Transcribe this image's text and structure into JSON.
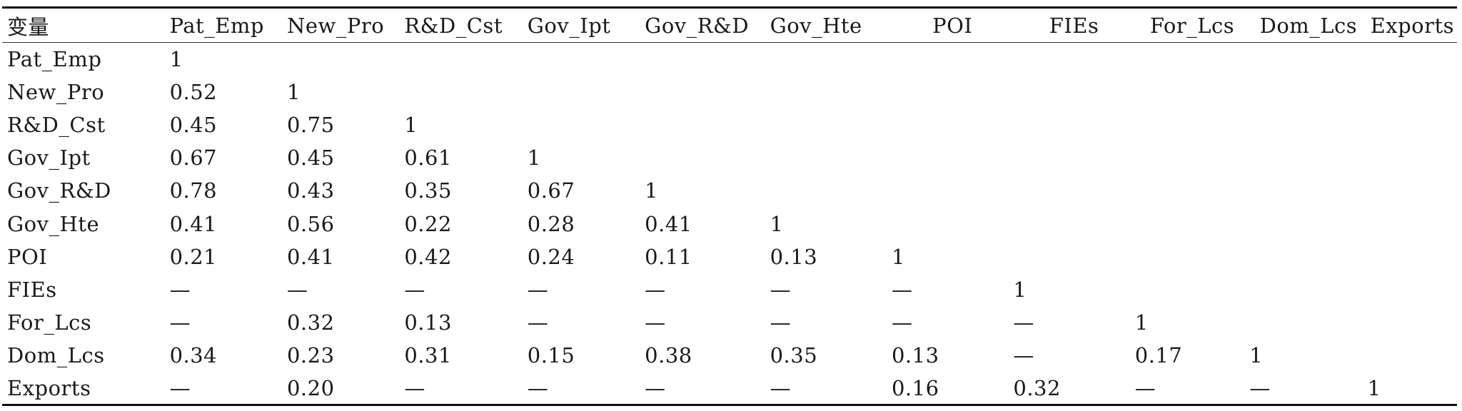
{
  "table": {
    "corner_label": "变量",
    "columns": [
      "Pat_Emp",
      "New_Pro",
      "R&D_Cst",
      "Gov_Ipt",
      "Gov_R&D",
      "Gov_Hte",
      "POI",
      "FIEs",
      "For_Lcs",
      "Dom_Lcs",
      "Exports"
    ],
    "rows": [
      {
        "label": "Pat_Emp",
        "cells": [
          "1",
          "",
          "",
          "",
          "",
          "",
          "",
          "",
          "",
          "",
          ""
        ]
      },
      {
        "label": "New_Pro",
        "cells": [
          "0.52",
          "1",
          "",
          "",
          "",
          "",
          "",
          "",
          "",
          "",
          ""
        ]
      },
      {
        "label": "R&D_Cst",
        "cells": [
          "0.45",
          "0.75",
          "1",
          "",
          "",
          "",
          "",
          "",
          "",
          "",
          ""
        ]
      },
      {
        "label": "Gov_Ipt",
        "cells": [
          "0.67",
          "0.45",
          "0.61",
          "1",
          "",
          "",
          "",
          "",
          "",
          "",
          ""
        ]
      },
      {
        "label": "Gov_R&D",
        "cells": [
          "0.78",
          "0.43",
          "0.35",
          "0.67",
          "1",
          "",
          "",
          "",
          "",
          "",
          ""
        ]
      },
      {
        "label": "Gov_Hte",
        "cells": [
          "0.41",
          "0.56",
          "0.22",
          "0.28",
          "0.41",
          "1",
          "",
          "",
          "",
          "",
          ""
        ]
      },
      {
        "label": "POI",
        "cells": [
          "0.21",
          "0.41",
          "0.42",
          "0.24",
          "0.11",
          "0.13",
          "1",
          "",
          "",
          "",
          ""
        ]
      },
      {
        "label": "FIEs",
        "cells": [
          "—",
          "—",
          "—",
          "—",
          "—",
          "—",
          "—",
          "1",
          "",
          "",
          ""
        ]
      },
      {
        "label": "For_Lcs",
        "cells": [
          "—",
          "0.32",
          "0.13",
          "—",
          "—",
          "—",
          "—",
          "—",
          "1",
          "",
          ""
        ]
      },
      {
        "label": "Dom_Lcs",
        "cells": [
          "0.34",
          "0.23",
          "0.31",
          "0.15",
          "0.38",
          "0.35",
          "0.13",
          "—",
          "0.17",
          "1",
          ""
        ]
      },
      {
        "label": "Exports",
        "cells": [
          "—",
          "0.20",
          "—",
          "—",
          "—",
          "—",
          "0.16",
          "0.32",
          "—",
          "—",
          "1"
        ]
      }
    ]
  }
}
